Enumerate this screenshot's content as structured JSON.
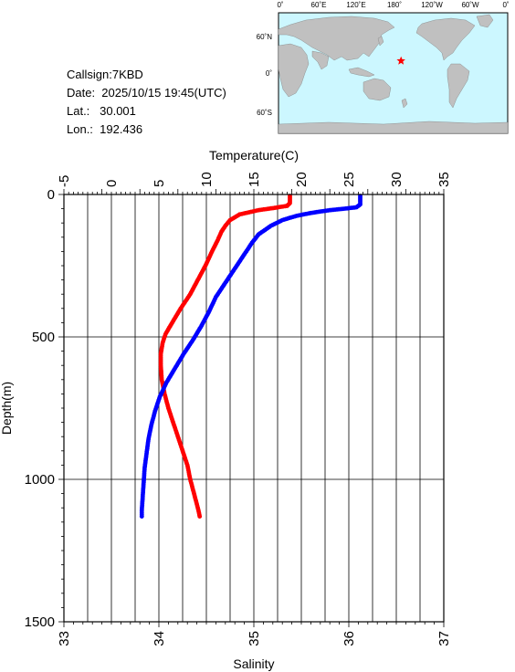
{
  "info": {
    "callsign": "Callsign:7KBD",
    "date": "Date:  2025/10/15 19:45(UTC)",
    "lat": "Lat.:   30.001",
    "lon": "Lon.:  192.436"
  },
  "map": {
    "top_labels": [
      "0˚",
      "60˚E",
      "120˚E",
      "180˚",
      "120˚W",
      "60˚W",
      "0˚"
    ],
    "right_labels": [
      "60˚N",
      "0˚",
      "60˚S"
    ],
    "marker": {
      "lon": 192.436,
      "lat": 30.001,
      "color": "#ff0000"
    },
    "ocean_color": "#ccf7ff",
    "land_color": "#c0c0c0"
  },
  "chart_data": {
    "type": "scatter",
    "title": "",
    "xlabel_top": "Temperature(C)",
    "xlabel_bottom": "Salinity",
    "ylabel": "Depth(m)",
    "temperature_ticks": [
      "-5",
      "0",
      "5",
      "10",
      "15",
      "20",
      "25",
      "30",
      "35"
    ],
    "salinity_ticks": [
      "33",
      "34",
      "35",
      "36",
      "37"
    ],
    "depth_ticks": [
      "0",
      "500",
      "1000",
      "1500"
    ],
    "xlim_temperature": [
      -5,
      35
    ],
    "xlim_salinity": [
      33,
      37
    ],
    "ylim_depth": [
      0,
      1500
    ],
    "grid": true,
    "series": [
      {
        "color": "#ff0000",
        "axis": "salinity",
        "points": [
          [
            35.38,
            5
          ],
          [
            35.38,
            10
          ],
          [
            35.38,
            20
          ],
          [
            35.38,
            30
          ],
          [
            35.35,
            40
          ],
          [
            35.2,
            48
          ],
          [
            35.05,
            55
          ],
          [
            34.85,
            70
          ],
          [
            34.75,
            90
          ],
          [
            34.7,
            110
          ],
          [
            34.66,
            130
          ],
          [
            34.62,
            160
          ],
          [
            34.56,
            200
          ],
          [
            34.49,
            250
          ],
          [
            34.41,
            300
          ],
          [
            34.33,
            350
          ],
          [
            34.23,
            400
          ],
          [
            34.14,
            450
          ],
          [
            34.07,
            490
          ],
          [
            34.04,
            520
          ],
          [
            34.02,
            560
          ],
          [
            34.02,
            600
          ],
          [
            34.03,
            650
          ],
          [
            34.06,
            700
          ],
          [
            34.1,
            750
          ],
          [
            34.15,
            800
          ],
          [
            34.2,
            850
          ],
          [
            34.25,
            900
          ],
          [
            34.3,
            950
          ],
          [
            34.33,
            1000
          ],
          [
            34.37,
            1050
          ],
          [
            34.41,
            1100
          ],
          [
            34.43,
            1130
          ]
        ]
      },
      {
        "color": "#0000ff",
        "axis": "temperature",
        "points": [
          [
            26.2,
            5
          ],
          [
            26.2,
            20
          ],
          [
            26.2,
            35
          ],
          [
            25.8,
            45
          ],
          [
            24.5,
            50
          ],
          [
            23,
            55
          ],
          [
            21,
            65
          ],
          [
            19.5,
            75
          ],
          [
            18,
            90
          ],
          [
            16.8,
            110
          ],
          [
            15.5,
            140
          ],
          [
            14.8,
            170
          ],
          [
            14,
            210
          ],
          [
            13,
            260
          ],
          [
            12,
            310
          ],
          [
            11,
            360
          ],
          [
            10.3,
            410
          ],
          [
            9.5,
            460
          ],
          [
            8.6,
            510
          ],
          [
            7.6,
            560
          ],
          [
            6.7,
            610
          ],
          [
            5.8,
            660
          ],
          [
            5.1,
            710
          ],
          [
            4.6,
            760
          ],
          [
            4.2,
            810
          ],
          [
            3.9,
            860
          ],
          [
            3.7,
            910
          ],
          [
            3.5,
            960
          ],
          [
            3.4,
            1010
          ],
          [
            3.3,
            1060
          ],
          [
            3.2,
            1110
          ],
          [
            3.2,
            1130
          ]
        ]
      }
    ]
  }
}
